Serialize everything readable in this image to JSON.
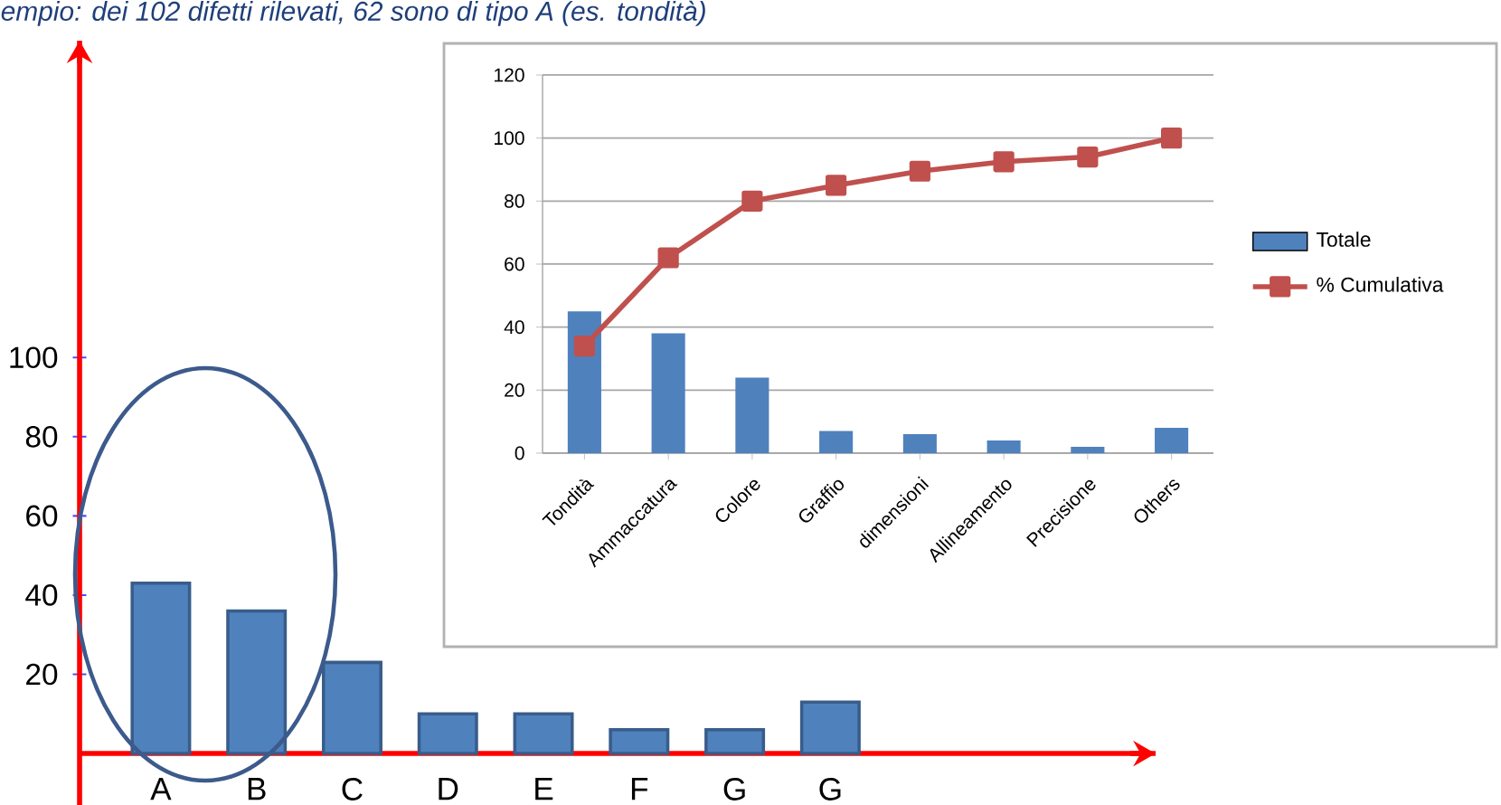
{
  "chart_data": [
    {
      "type": "bar",
      "title": "empio: dei 102 difetti rilevati, 62 sono di tipo A (es. tondità)",
      "categories": [
        "A",
        "B",
        "C",
        "D",
        "E",
        "F",
        "G",
        "G"
      ],
      "values": [
        43,
        36,
        23,
        10,
        10,
        6,
        6,
        13
      ],
      "color": "#4f81bd",
      "ylim": [
        -13,
        180
      ],
      "yticks": [
        20,
        40,
        60,
        80,
        100
      ]
    },
    {
      "type": "bar",
      "categories": [
        "Tondità",
        "Ammaccatura",
        "Colore",
        "Graffio",
        "dimensioni",
        "Allineamento",
        "Precisione",
        "Others"
      ],
      "series": [
        {
          "name": "Totale",
          "type": "bar",
          "color": "#4f81bd",
          "values": [
            45,
            38,
            24,
            7,
            6,
            4,
            2,
            8
          ]
        },
        {
          "name": "% Cumulativa",
          "type": "line",
          "color": "#c0504d",
          "marker": "square",
          "values": [
            34,
            62,
            80,
            85,
            89.5,
            92.5,
            94,
            100
          ]
        }
      ],
      "ylim": [
        0,
        120
      ],
      "yticks": [
        0,
        20,
        40,
        60,
        80,
        100,
        120
      ],
      "grid": "y",
      "legend": "right"
    }
  ]
}
